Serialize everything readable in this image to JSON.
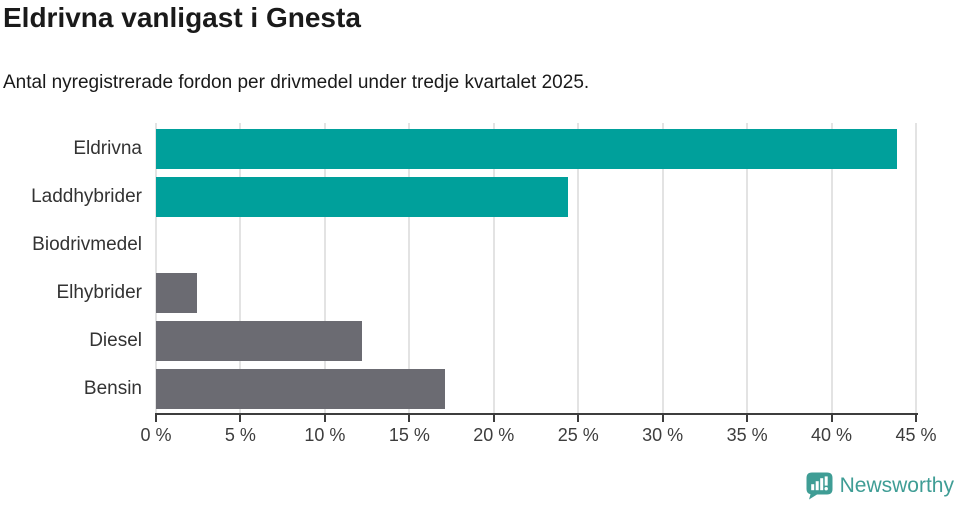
{
  "title": "Eldrivna vanligast i Gnesta",
  "subtitle": "Antal nyregistrerade fordon per drivmedel under tredje kvartalet 2025.",
  "branding": {
    "logo_text": "Newsworthy",
    "logo_icon": "speech-bubble-bar-chart-icon",
    "logo_color": "#3f9d95"
  },
  "colors": {
    "highlight_teal": "#00a09b",
    "muted_gray": "#6b6b72",
    "gridline": "#e3e3e3",
    "axis": "#3d3d3d",
    "title_text": "#1a1a1a",
    "label_text": "#333333"
  },
  "chart_data": {
    "type": "bar",
    "orientation": "horizontal",
    "title": "Eldrivna vanligast i Gnesta",
    "subtitle": "Antal nyregistrerade fordon per drivmedel under tredje kvartalet 2025.",
    "categories": [
      "Eldrivna",
      "Laddhybrider",
      "Biodrivmedel",
      "Elhybrider",
      "Diesel",
      "Bensin"
    ],
    "values": [
      43.9,
      24.4,
      0,
      2.4,
      12.2,
      17.1
    ],
    "bar_colors": [
      "#00a09b",
      "#00a09b",
      "#6b6b72",
      "#6b6b72",
      "#6b6b72",
      "#6b6b72"
    ],
    "unit": "%",
    "xlabel": "",
    "ylabel": "",
    "xlim": [
      0,
      45
    ],
    "x_ticks": [
      0,
      5,
      10,
      15,
      20,
      25,
      30,
      35,
      40,
      45
    ],
    "x_tick_labels": [
      "0 %",
      "5 %",
      "10 %",
      "15 %",
      "20 %",
      "25 %",
      "30 %",
      "35 %",
      "40 %",
      "45 %"
    ],
    "grid": true,
    "legend": false
  }
}
